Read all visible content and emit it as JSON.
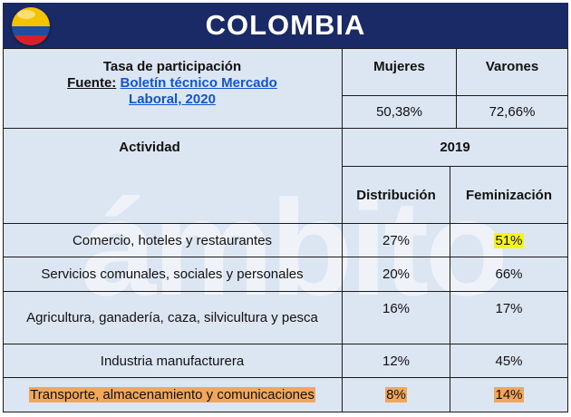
{
  "header": {
    "title": "COLOMBIA",
    "flag_icon": "colombia-flag-icon"
  },
  "watermark": "ámbito",
  "participation": {
    "label": "Tasa de participación",
    "source_prefix": "Fuente:",
    "source_link": "Boletín técnico Mercado Laboral, 2020",
    "col_women": "Mujeres",
    "col_men": "Varones",
    "women_value": "50,38%",
    "men_value": "72,66%"
  },
  "activity": {
    "header_activity": "Actividad",
    "header_year": "2019",
    "col_distribution": "Distribución",
    "col_feminization": "Feminización",
    "rows": [
      {
        "name": "Comercio, hoteles y restaurantes",
        "distribution": "27%",
        "feminization": "51%"
      },
      {
        "name": "Servicios comunales, sociales y personales",
        "distribution": "20%",
        "feminization": "66%"
      },
      {
        "name": "Agricultura, ganadería, caza, silvicultura y pesca",
        "distribution": "16%",
        "feminization": "17%"
      },
      {
        "name": "Industria manufacturera",
        "distribution": "12%",
        "feminization": "45%"
      },
      {
        "name": "Transporte, almacenamiento y comunicaciones",
        "distribution": "8%",
        "feminization": "14%"
      }
    ]
  },
  "colors": {
    "header_bg": "#1a2a66",
    "table_bg": "#dce6f2",
    "highlight_yellow": "#f6f51b",
    "highlight_orange": "#f2a65a"
  }
}
